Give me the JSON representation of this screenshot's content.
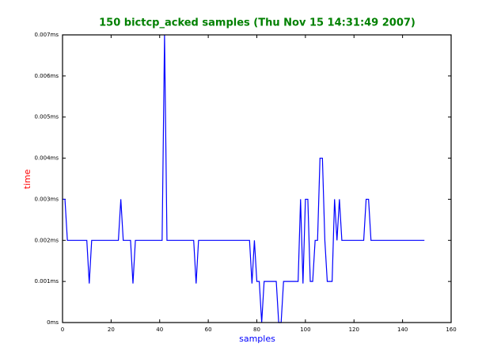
{
  "chart_data": {
    "type": "line",
    "title": "150 bictcp_acked samples (Thu Nov 15 14:31:49 2007)",
    "xlabel": "samples",
    "ylabel": "time",
    "x": [
      0,
      1,
      2,
      3,
      4,
      5,
      6,
      7,
      8,
      9,
      10,
      11,
      12,
      13,
      14,
      15,
      16,
      17,
      18,
      19,
      20,
      21,
      22,
      23,
      24,
      25,
      26,
      27,
      28,
      29,
      30,
      31,
      32,
      33,
      34,
      35,
      36,
      37,
      38,
      39,
      40,
      41,
      42,
      43,
      44,
      45,
      46,
      47,
      48,
      49,
      50,
      51,
      52,
      53,
      54,
      55,
      56,
      57,
      58,
      59,
      60,
      61,
      62,
      63,
      64,
      65,
      66,
      67,
      68,
      69,
      70,
      71,
      72,
      73,
      74,
      75,
      76,
      77,
      78,
      79,
      80,
      81,
      82,
      83,
      84,
      85,
      86,
      87,
      88,
      89,
      90,
      91,
      92,
      93,
      94,
      95,
      96,
      97,
      98,
      99,
      100,
      101,
      102,
      103,
      104,
      105,
      106,
      107,
      108,
      109,
      110,
      111,
      112,
      113,
      114,
      115,
      116,
      117,
      118,
      119,
      120,
      121,
      122,
      123,
      124,
      125,
      126,
      127,
      128,
      129,
      130,
      131,
      132,
      133,
      134,
      135,
      136,
      137,
      138,
      139,
      140,
      141,
      142,
      143,
      144,
      145,
      146,
      147,
      148,
      149
    ],
    "values": [
      0.003,
      0.003,
      0.002,
      0.002,
      0.002,
      0.002,
      0.002,
      0.002,
      0.002,
      0.002,
      0.002,
      0.00095,
      0.002,
      0.002,
      0.002,
      0.002,
      0.002,
      0.002,
      0.002,
      0.002,
      0.002,
      0.002,
      0.002,
      0.002,
      0.003,
      0.002,
      0.002,
      0.002,
      0.002,
      0.00095,
      0.002,
      0.002,
      0.002,
      0.002,
      0.002,
      0.002,
      0.002,
      0.002,
      0.002,
      0.002,
      0.002,
      0.002,
      0.007,
      0.002,
      0.002,
      0.002,
      0.002,
      0.002,
      0.002,
      0.002,
      0.002,
      0.002,
      0.002,
      0.002,
      0.002,
      0.00095,
      0.002,
      0.002,
      0.002,
      0.002,
      0.002,
      0.002,
      0.002,
      0.002,
      0.002,
      0.002,
      0.002,
      0.002,
      0.002,
      0.002,
      0.002,
      0.002,
      0.002,
      0.002,
      0.002,
      0.002,
      0.002,
      0.002,
      0.00095,
      0.002,
      0.001,
      0.001,
      0,
      0.001,
      0.001,
      0.001,
      0.001,
      0.001,
      0.001,
      0,
      0,
      0.001,
      0.001,
      0.001,
      0.001,
      0.001,
      0.001,
      0.001,
      0.003,
      0.00095,
      0.003,
      0.003,
      0.001,
      0.001,
      0.002,
      0.002,
      0.004,
      0.004,
      0.002,
      0.001,
      0.001,
      0.001,
      0.003,
      0.002,
      0.003,
      0.002,
      0.002,
      0.002,
      0.002,
      0.002,
      0.002,
      0.002,
      0.002,
      0.002,
      0.002,
      0.003,
      0.003,
      0.002,
      0.002,
      0.002,
      0.002,
      0.002,
      0.002,
      0.002,
      0.002,
      0.002,
      0.002,
      0.002,
      0.002,
      0.002,
      0.002,
      0.002,
      0.002,
      0.002,
      0.002,
      0.002,
      0.002,
      0.002,
      0.002,
      0.002
    ],
    "color": "#0000ff",
    "xlim": [
      0,
      160
    ],
    "xticks": [
      0,
      20,
      40,
      60,
      80,
      100,
      120,
      140,
      160
    ],
    "ylim": [
      0,
      0.007
    ],
    "yticks": [
      {
        "value": 0,
        "label": "0ms"
      },
      {
        "value": 0.001,
        "label": "0.001ms"
      },
      {
        "value": 0.002,
        "label": "0.002ms"
      },
      {
        "value": 0.003,
        "label": "0.003ms"
      },
      {
        "value": 0.004,
        "label": "0.004ms"
      },
      {
        "value": 0.005,
        "label": "0.005ms"
      },
      {
        "value": 0.006,
        "label": "0.006ms"
      },
      {
        "value": 0.007,
        "label": "0.007ms"
      }
    ],
    "grid": false
  }
}
